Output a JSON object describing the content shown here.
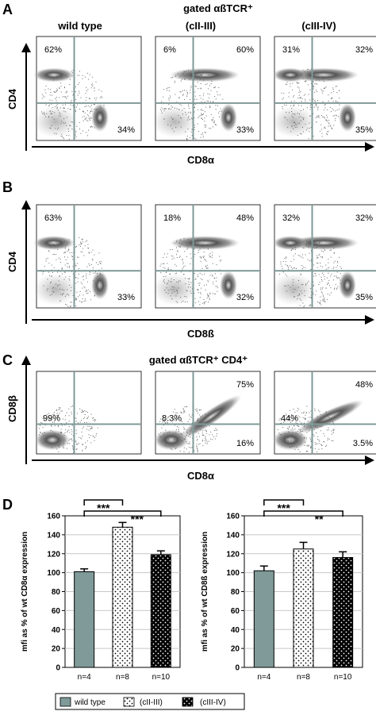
{
  "panels": {
    "A": {
      "letter": "A",
      "header": "gated αßTCR⁺",
      "col_titles": [
        "wild type",
        "(cII-III)",
        "(cIII-IV)"
      ],
      "y_axis": "CD4",
      "x_axis": "CD8α",
      "quadrants": [
        {
          "ul": "62%",
          "ur": "",
          "lr": "34%"
        },
        {
          "ul": "6%",
          "ur": "60%",
          "lr": "33%"
        },
        {
          "ul": "31%",
          "ur": "32%",
          "lr": "35%"
        }
      ]
    },
    "B": {
      "letter": "B",
      "y_axis": "CD4",
      "x_axis": "CD8ß",
      "quadrants": [
        {
          "ul": "63%",
          "ur": "",
          "lr": "33%"
        },
        {
          "ul": "18%",
          "ur": "48%",
          "lr": "32%"
        },
        {
          "ul": "32%",
          "ur": "32%",
          "lr": "35%"
        }
      ]
    },
    "C": {
      "letter": "C",
      "header": "gated αßTCR⁺ CD4⁺",
      "y_axis": "CD8β",
      "x_axis": "CD8α",
      "quadrants": [
        {
          "ll": "99%",
          "ur": "",
          "lr": ""
        },
        {
          "ll": "8.3%",
          "ur": "75%",
          "lr": "16%"
        },
        {
          "ll": "44%",
          "ur": "48%",
          "lr": "3.5%"
        }
      ]
    },
    "D": {
      "letter": "D",
      "legend": [
        {
          "label": "wild type",
          "pattern": "solid",
          "color": "#7f9a98"
        },
        {
          "label": "(cII-III)",
          "pattern": "white-dots"
        },
        {
          "label": "(cIII-IV)",
          "pattern": "black-dots"
        }
      ]
    }
  },
  "chart_data": [
    {
      "type": "bar",
      "categories": [
        "n=4",
        "n=8",
        "n=10"
      ],
      "values": [
        101,
        148,
        119
      ],
      "errors": [
        3,
        5,
        4
      ],
      "ylabel": "mfi as % of wt CD8α expression",
      "ylim": [
        0,
        160
      ],
      "yticks": [
        "0",
        "20",
        "40",
        "60",
        "80",
        "100",
        "120",
        "140",
        "160"
      ],
      "grid": true,
      "significance": [
        {
          "from": 0,
          "to": 1,
          "label": "***"
        },
        {
          "from": 0,
          "to": 2,
          "label": "***"
        }
      ]
    },
    {
      "type": "bar",
      "categories": [
        "n=4",
        "n=8",
        "n=10"
      ],
      "values": [
        102,
        125,
        116
      ],
      "errors": [
        5,
        7,
        6
      ],
      "ylabel": "mfi as % of wt CD8ß expression",
      "ylim": [
        0,
        160
      ],
      "yticks": [
        "0",
        "20",
        "40",
        "60",
        "80",
        "100",
        "120",
        "140",
        "160"
      ],
      "grid": true,
      "significance": [
        {
          "from": 0,
          "to": 1,
          "label": "***"
        },
        {
          "from": 0,
          "to": 2,
          "label": "**"
        }
      ]
    }
  ]
}
